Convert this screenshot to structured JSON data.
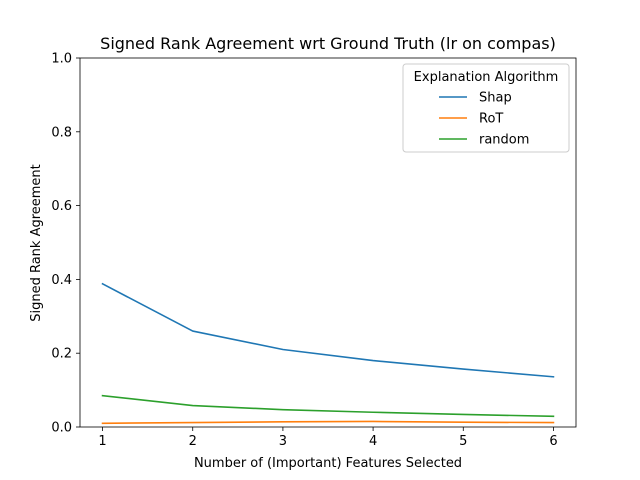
{
  "chart_data": {
    "type": "line",
    "title": "Signed Rank Agreement wrt Ground Truth (lr on compas)",
    "xlabel": "Number of (Important) Features Selected",
    "ylabel": "Signed Rank Agreement",
    "x": [
      1,
      2,
      3,
      4,
      5,
      6
    ],
    "xlim": [
      0.75,
      6.25
    ],
    "ylim": [
      0.0,
      1.0
    ],
    "xticks": [
      "1",
      "2",
      "3",
      "4",
      "5",
      "6"
    ],
    "yticks": [
      "0.0",
      "0.2",
      "0.4",
      "0.6",
      "0.8",
      "1.0"
    ],
    "grid": false,
    "legend": {
      "title": "Explanation Algorithm",
      "placement": "top-right"
    },
    "series": [
      {
        "name": "Shap",
        "color": "#1f77b4",
        "values": [
          0.388,
          0.26,
          0.21,
          0.18,
          0.157,
          0.136
        ]
      },
      {
        "name": "RoT",
        "color": "#ff7f0e",
        "values": [
          0.01,
          0.012,
          0.014,
          0.015,
          0.013,
          0.012
        ]
      },
      {
        "name": "random",
        "color": "#2ca02c",
        "values": [
          0.085,
          0.058,
          0.047,
          0.04,
          0.034,
          0.029
        ]
      }
    ]
  }
}
